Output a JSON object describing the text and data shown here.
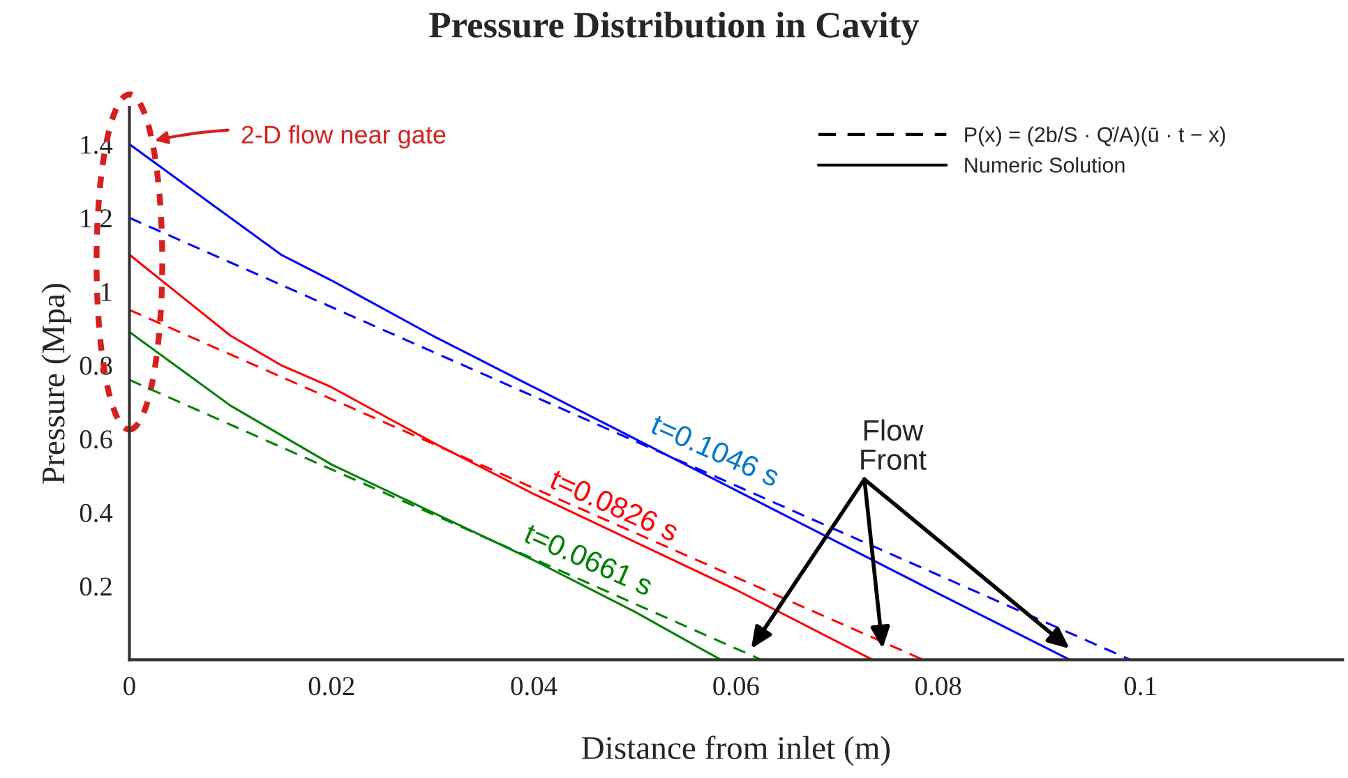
{
  "chart_data": {
    "type": "line",
    "title": "Pressure Distribution in Cavity",
    "xlabel": "Distance from inlet (m)",
    "ylabel": "Pressure (Mpa)",
    "xlim": [
      0,
      0.12
    ],
    "xticks": [
      0,
      0.02,
      0.04,
      0.06,
      0.08,
      0.1
    ],
    "ylim": [
      0,
      1.5
    ],
    "yticks": [
      0.2,
      0.4,
      0.6,
      0.8,
      1,
      1.2,
      1.4
    ],
    "grid": false,
    "series": [
      {
        "color": "#0000ff",
        "line_style": "solid",
        "x": [
          0,
          0.005,
          0.01,
          0.015,
          0.02,
          0.03,
          0.04,
          0.05,
          0.06,
          0.07,
          0.08,
          0.093
        ],
        "values": [
          1.4,
          1.3,
          1.2,
          1.1,
          1.03,
          0.88,
          0.74,
          0.6,
          0.46,
          0.32,
          0.18,
          0
        ]
      },
      {
        "color": "#0000ff",
        "line_style": "dashed",
        "x": [
          0,
          0.099
        ],
        "values": [
          1.2,
          0
        ]
      },
      {
        "color": "#ff0000",
        "line_style": "solid",
        "x": [
          0,
          0.005,
          0.01,
          0.015,
          0.02,
          0.03,
          0.04,
          0.05,
          0.06,
          0.0735
        ],
        "values": [
          1.1,
          0.99,
          0.88,
          0.8,
          0.74,
          0.59,
          0.45,
          0.32,
          0.19,
          0
        ]
      },
      {
        "color": "#ff0000",
        "line_style": "dashed",
        "x": [
          0,
          0.0785
        ],
        "values": [
          0.95,
          0
        ]
      },
      {
        "color": "#008000",
        "line_style": "solid",
        "x": [
          0,
          0.005,
          0.01,
          0.02,
          0.03,
          0.04,
          0.05,
          0.0585
        ],
        "values": [
          0.89,
          0.79,
          0.69,
          0.53,
          0.4,
          0.27,
          0.13,
          0
        ]
      },
      {
        "color": "#008000",
        "line_style": "dashed",
        "x": [
          0,
          0.0625
        ],
        "values": [
          0.76,
          0
        ]
      }
    ],
    "annotations": [
      "t=0.1046 s",
      "t=0.0826 s",
      "t=0.0661 s",
      "2-D flow near gate",
      {
        "text": "Flow Front",
        "x": 0.0745,
        "y": 0.03
      },
      "P(x) = (2b/S · Q̇/A)(ū · t − x)",
      "Numeric Solution"
    ]
  }
}
